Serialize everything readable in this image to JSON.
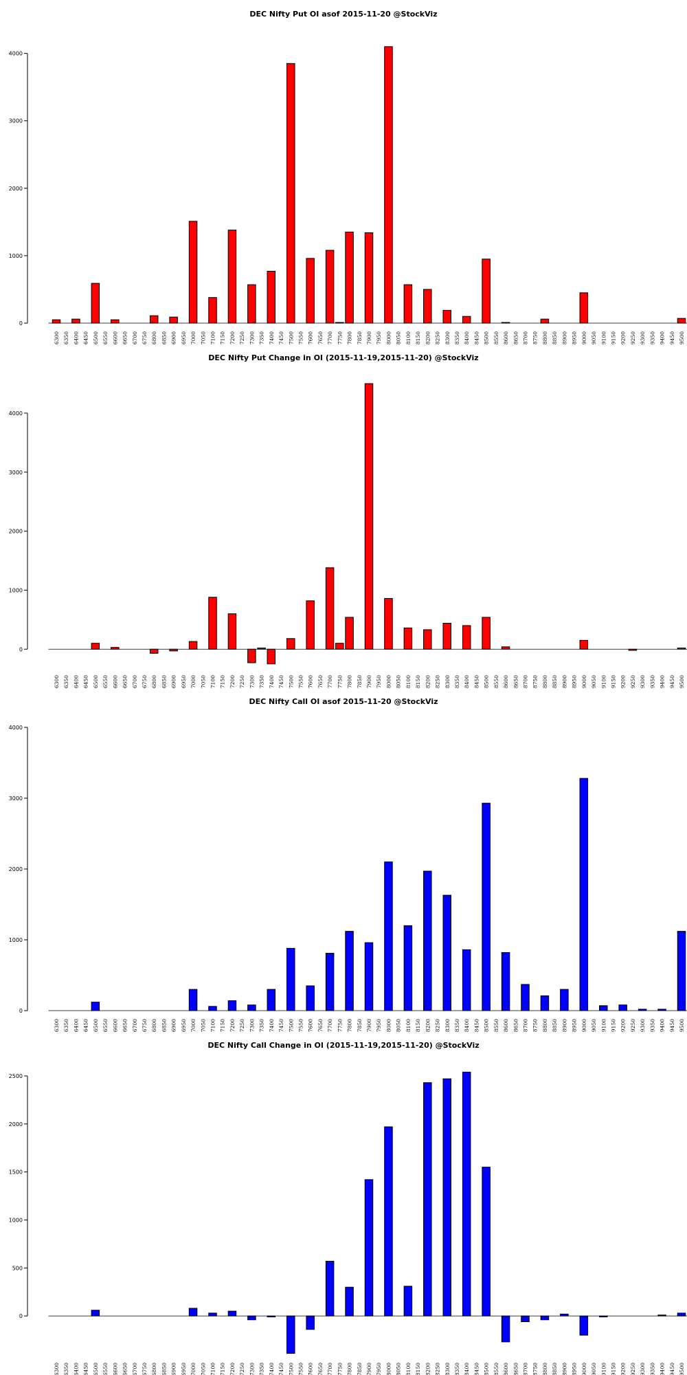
{
  "chart_data": [
    {
      "type": "bar",
      "title": "DEC Nifty Put OI asof 2015-11-20 @StockViz",
      "categories": [
        6300,
        6350,
        6400,
        6450,
        6500,
        6550,
        6600,
        6650,
        6700,
        6750,
        6800,
        6850,
        6900,
        6950,
        7000,
        7050,
        7100,
        7150,
        7200,
        7250,
        7300,
        7350,
        7400,
        7450,
        7500,
        7550,
        7600,
        7650,
        7700,
        7750,
        7800,
        7850,
        7900,
        7950,
        8000,
        8050,
        8100,
        8150,
        8200,
        8250,
        8300,
        8350,
        8400,
        8450,
        8500,
        8550,
        8600,
        8650,
        8700,
        8750,
        8800,
        8850,
        8900,
        8950,
        9000,
        9050,
        9100,
        9150,
        9200,
        9250,
        9300,
        9350,
        9400,
        9450,
        9500
      ],
      "values": [
        50,
        0,
        60,
        0,
        590,
        0,
        50,
        0,
        0,
        0,
        110,
        0,
        90,
        0,
        1510,
        0,
        380,
        0,
        1380,
        0,
        570,
        0,
        770,
        0,
        3850,
        0,
        960,
        0,
        1080,
        10,
        1350,
        0,
        1340,
        0,
        4100,
        0,
        570,
        0,
        500,
        0,
        190,
        0,
        100,
        0,
        950,
        0,
        10,
        0,
        0,
        0,
        60,
        0,
        0,
        0,
        450,
        0,
        0,
        0,
        0,
        0,
        0,
        0,
        0,
        0,
        70
      ],
      "color": "#ff0000",
      "ylim": [
        0,
        4200
      ],
      "yticks": [
        0,
        1000,
        2000,
        3000,
        4000
      ]
    },
    {
      "type": "bar",
      "title": "DEC Nifty Put Change in OI (2015-11-19,2015-11-20) @StockViz",
      "categories": [
        6300,
        6350,
        6400,
        6450,
        6500,
        6550,
        6600,
        6650,
        6700,
        6750,
        6800,
        6850,
        6900,
        6950,
        7000,
        7050,
        7100,
        7150,
        7200,
        7250,
        7300,
        7350,
        7400,
        7450,
        7500,
        7550,
        7600,
        7650,
        7700,
        7750,
        7800,
        7850,
        7900,
        7950,
        8000,
        8050,
        8100,
        8150,
        8200,
        8250,
        8300,
        8350,
        8400,
        8450,
        8500,
        8550,
        8600,
        8650,
        8700,
        8750,
        8800,
        8850,
        8900,
        8950,
        9000,
        9050,
        9100,
        9150,
        9200,
        9250,
        9300,
        9350,
        9400,
        9450,
        9500
      ],
      "values": [
        0,
        0,
        0,
        0,
        100,
        0,
        30,
        0,
        0,
        0,
        -70,
        0,
        -30,
        0,
        130,
        0,
        880,
        0,
        600,
        0,
        -230,
        20,
        -250,
        0,
        180,
        0,
        820,
        0,
        1380,
        100,
        540,
        0,
        4500,
        0,
        860,
        0,
        360,
        0,
        330,
        0,
        440,
        0,
        400,
        0,
        540,
        0,
        40,
        0,
        0,
        0,
        0,
        0,
        0,
        0,
        150,
        0,
        0,
        0,
        0,
        -20,
        0,
        0,
        0,
        0,
        20
      ],
      "color": "#ff0000",
      "ylim": [
        -300,
        4500
      ],
      "yticks": [
        0,
        1000,
        2000,
        3000,
        4000
      ]
    },
    {
      "type": "bar",
      "title": "DEC Nifty Call OI asof 2015-11-20 @StockViz",
      "categories": [
        6300,
        6350,
        6400,
        6450,
        6500,
        6550,
        6600,
        6650,
        6700,
        6750,
        6800,
        6850,
        6900,
        6950,
        7000,
        7050,
        7100,
        7150,
        7200,
        7250,
        7300,
        7350,
        7400,
        7450,
        7500,
        7550,
        7600,
        7650,
        7700,
        7750,
        7800,
        7850,
        7900,
        7950,
        8000,
        8050,
        8100,
        8150,
        8200,
        8250,
        8300,
        8350,
        8400,
        8450,
        8500,
        8550,
        8600,
        8650,
        8700,
        8750,
        8800,
        8850,
        8900,
        8950,
        9000,
        9050,
        9100,
        9150,
        9200,
        9250,
        9300,
        9350,
        9400,
        9450,
        9500
      ],
      "values": [
        0,
        0,
        0,
        0,
        120,
        0,
        0,
        0,
        0,
        0,
        0,
        0,
        0,
        0,
        300,
        0,
        60,
        0,
        140,
        0,
        80,
        0,
        300,
        0,
        880,
        0,
        350,
        0,
        810,
        0,
        1120,
        0,
        960,
        0,
        2100,
        0,
        1200,
        0,
        1970,
        0,
        1630,
        0,
        860,
        0,
        2930,
        0,
        820,
        0,
        370,
        0,
        210,
        0,
        300,
        0,
        3280,
        0,
        70,
        0,
        80,
        0,
        20,
        0,
        20,
        0,
        1120
      ],
      "color": "#0000ff",
      "ylim": [
        0,
        4000
      ],
      "yticks": [
        0,
        1000,
        2000,
        3000,
        4000
      ]
    },
    {
      "type": "bar",
      "title": "DEC Nifty Call Change in OI (2015-11-19,2015-11-20) @StockViz",
      "categories": [
        6300,
        6350,
        6400,
        6450,
        6500,
        6550,
        6600,
        6650,
        6700,
        6750,
        6800,
        6850,
        6900,
        6950,
        7000,
        7050,
        7100,
        7150,
        7200,
        7250,
        7300,
        7350,
        7400,
        7450,
        7500,
        7550,
        7600,
        7650,
        7700,
        7750,
        7800,
        7850,
        7900,
        7950,
        8000,
        8050,
        8100,
        8150,
        8200,
        8250,
        8300,
        8350,
        8400,
        8450,
        8500,
        8550,
        8600,
        8650,
        8700,
        8750,
        8800,
        8850,
        8900,
        8950,
        9000,
        9050,
        9100,
        9150,
        9200,
        9250,
        9300,
        9350,
        9400,
        9450,
        9500
      ],
      "values": [
        0,
        0,
        0,
        0,
        60,
        0,
        0,
        0,
        0,
        0,
        0,
        0,
        0,
        0,
        80,
        0,
        30,
        0,
        50,
        0,
        -40,
        0,
        -10,
        0,
        -390,
        0,
        -140,
        0,
        570,
        0,
        300,
        0,
        1420,
        0,
        1970,
        0,
        310,
        0,
        2430,
        0,
        2470,
        0,
        2540,
        0,
        1550,
        0,
        -270,
        0,
        -60,
        0,
        -40,
        0,
        20,
        0,
        -200,
        0,
        -10,
        0,
        0,
        0,
        0,
        0,
        10,
        0,
        30
      ],
      "color": "#0000ff",
      "ylim": [
        -400,
        2550
      ],
      "yticks": [
        0,
        500,
        1000,
        1500,
        2000,
        2500
      ]
    }
  ]
}
